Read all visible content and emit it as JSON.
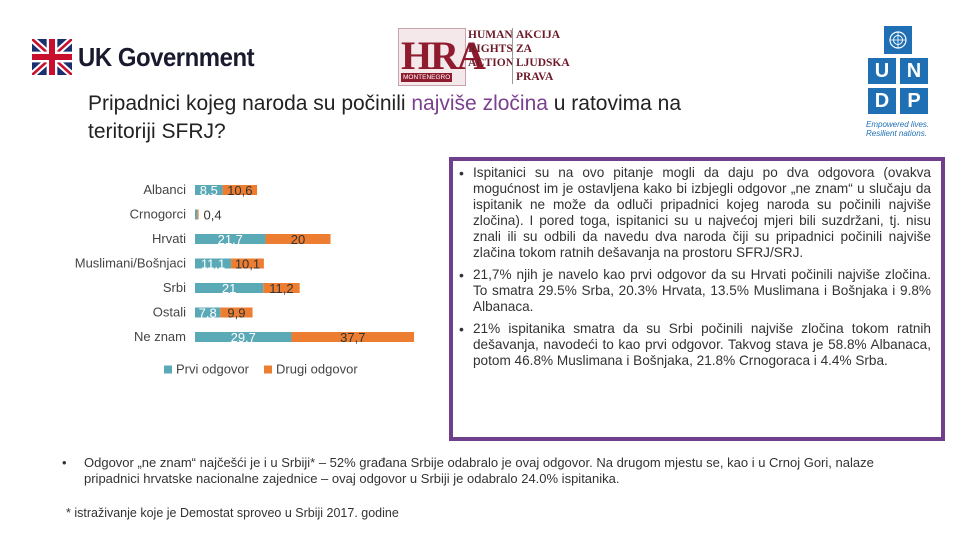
{
  "logos": {
    "uk_government": "UK Government",
    "hra": {
      "mark": "HRA",
      "sub": "MONTENEGRO",
      "en": [
        "HUMAN",
        "RIGHTS",
        "ACTION"
      ],
      "me": [
        "AKCIJA ZA",
        "LJUDSKA",
        "PRAVA"
      ]
    },
    "undp": {
      "letters": [
        "U",
        "N",
        "D",
        "P"
      ],
      "tagline": [
        "Empowered lives.",
        "Resilient nations."
      ]
    }
  },
  "title": {
    "part1": "Pripadnici kojeg naroda su počinili ",
    "highlight": "najviše zločina",
    "part2": " u ratovima na teritoriji SFRJ?"
  },
  "chart_data": {
    "type": "bar",
    "orientation": "horizontal",
    "stacked": true,
    "categories": [
      "Albanci",
      "Crnogorci",
      "Hrvati",
      "Muslimani/Bošnjaci",
      "Srbi",
      "Ostali",
      "Ne znam"
    ],
    "series": [
      {
        "name": "Prvi odgovor",
        "values": [
          8.5,
          0.7,
          21.7,
          11.1,
          21,
          7.8,
          29.7
        ],
        "labels": [
          "8,5",
          "",
          "21,7",
          "11,1",
          "21",
          "7,8",
          "29,7"
        ],
        "color": "#5aa9b6"
      },
      {
        "name": "Drugi odgovor",
        "values": [
          10.6,
          0.4,
          20,
          10.1,
          11.2,
          9.9,
          37.7
        ],
        "labels": [
          "10,6",
          "0,4",
          "20",
          "10,1",
          "11,2",
          "9,9",
          "37,7"
        ],
        "color": "#ed7d31"
      }
    ],
    "legend_position": "bottom",
    "grid": false
  },
  "info_bullets": [
    "Ispitanici su na ovo pitanje mogli da daju po dva odgovora (ovakva mogućnost im je ostavljena kako bi izbjegli odgovor „ne znam“ u slučaju da ispitanik ne može da odluči pripadnici kojeg naroda su počinili najviše zločina). I pored toga, ispitanici su u najvećoj mjeri bili suzdržani, tj. nisu znali ili su odbili da navedu dva naroda čiji su pripadnici počinili najviše zlačina tokom ratnih dešavanja na prostoru SFRJ/SRJ.",
    "21,7% njih je navelo kao prvi odgovor da su Hrvati počinili najviše zločina. To smatra 29.5% Srba, 20.3% Hrvata, 13.5% Muslimana i Bošnjaka i 9.8% Albanaca.",
    "21% ispitanika smatra da su Srbi počinili najviše zločina tokom ratnih dešavanja, navodeći to kao prvi odgovor. Takvog stava je 58.8% Albanaca, potom 46.8% Muslimana i Bošnjaka, 21.8% Crnogoraca i 4.4% Srba."
  ],
  "bottom_note": "Odgovor „ne znam“ najčešći je i u Srbiji* – 52% građana Srbije odabralo je ovaj odgovor. Na drugom mjestu se, kao i u Crnoj Gori, nalaze pripadnici hrvatske nacionalne zajednice – ovaj odgovor u Srbiji je odabralo 24.0% ispitanika.",
  "footnote": "* istraživanje koje je Demostat sproveo u Srbiji 2017. godine",
  "bullet_symbol": "•"
}
